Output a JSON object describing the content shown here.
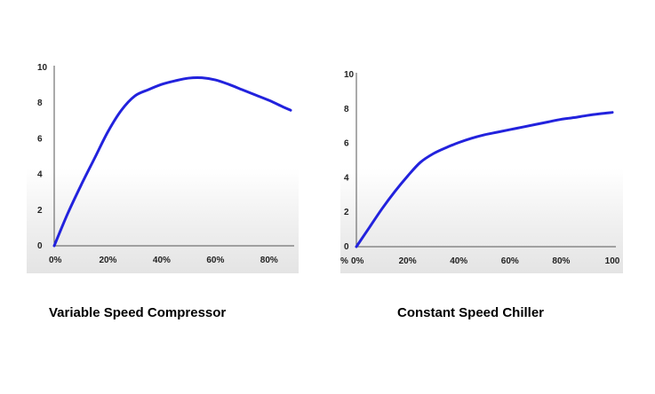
{
  "chart_data": [
    {
      "type": "line",
      "title": "Variable Speed Compressor",
      "xlabel": "",
      "ylabel": "",
      "xlim": [
        0,
        88
      ],
      "ylim": [
        0,
        10
      ],
      "x_ticks": [
        "0%",
        "20%",
        "40%",
        "60%",
        "80%"
      ],
      "y_ticks": [
        "0",
        "2",
        "4",
        "6",
        "8",
        "10"
      ],
      "grid": false,
      "line_color": "#2222dd",
      "series": [
        {
          "x": [
            0,
            5,
            10,
            15,
            20,
            25,
            30,
            35,
            40,
            45,
            50,
            55,
            60,
            65,
            70,
            75,
            80,
            85,
            88
          ],
          "y": [
            0,
            1.8,
            3.4,
            4.9,
            6.4,
            7.6,
            8.4,
            8.75,
            9.05,
            9.25,
            9.4,
            9.42,
            9.3,
            9.05,
            8.75,
            8.45,
            8.15,
            7.8,
            7.6
          ]
        }
      ]
    },
    {
      "type": "line",
      "title": "Constant Speed Chiller",
      "xlabel": "",
      "ylabel": "",
      "xlim": [
        0,
        100
      ],
      "ylim": [
        0,
        10
      ],
      "x_ticks": [
        "0%",
        "20%",
        "40%",
        "60%",
        "80%",
        "100"
      ],
      "x_tick_left_partial": "%",
      "y_ticks": [
        "0",
        "2",
        "4",
        "6",
        "8",
        "10"
      ],
      "grid": false,
      "line_color": "#2222dd",
      "series": [
        {
          "x": [
            0,
            5,
            10,
            15,
            20,
            25,
            30,
            35,
            40,
            45,
            50,
            55,
            60,
            65,
            70,
            75,
            80,
            85,
            90,
            95,
            100
          ],
          "y": [
            0,
            1.1,
            2.2,
            3.2,
            4.1,
            4.9,
            5.4,
            5.75,
            6.05,
            6.3,
            6.5,
            6.65,
            6.8,
            6.95,
            7.1,
            7.25,
            7.4,
            7.5,
            7.62,
            7.72,
            7.8
          ]
        }
      ]
    }
  ]
}
